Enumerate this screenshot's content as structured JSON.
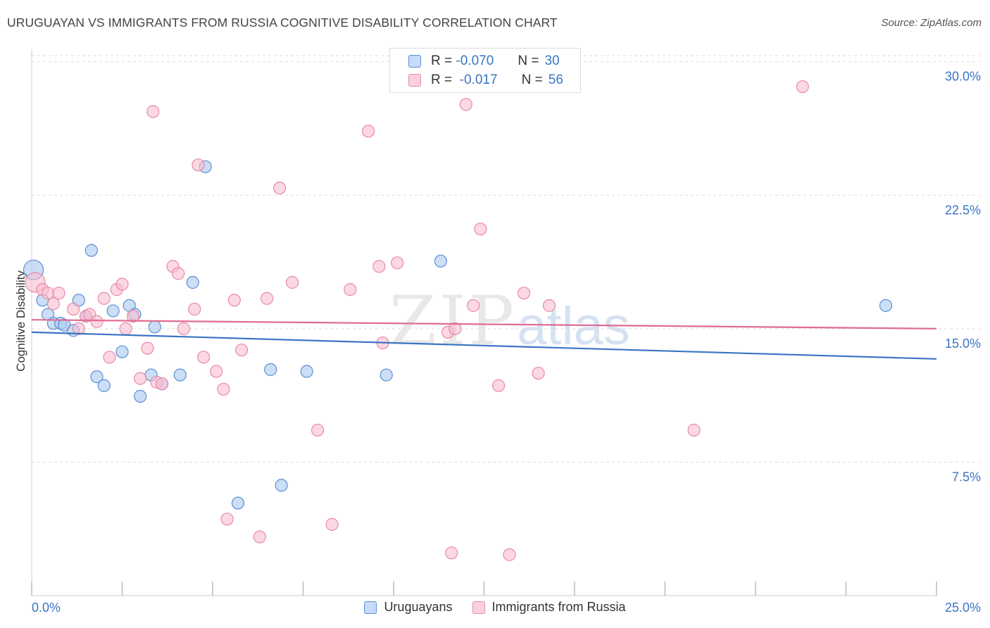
{
  "header": {
    "title": "URUGUAYAN VS IMMIGRANTS FROM RUSSIA COGNITIVE DISABILITY CORRELATION CHART",
    "source": "Source: ZipAtlas.com"
  },
  "watermark": {
    "zip": "ZIP",
    "atlas": "atlas"
  },
  "legend_top": {
    "rows": [
      {
        "r_label": "R =",
        "r_value": "-0.070",
        "n_label": "N =",
        "n_value": "30"
      },
      {
        "r_label": "R =",
        "r_value": "-0.017",
        "n_label": "N =",
        "n_value": "56"
      }
    ]
  },
  "colors": {
    "blue_fill": "#aac8ef",
    "blue_stroke": "#5b8fd6",
    "blue_line": "#3a74c4",
    "pink_fill": "#f8bed0",
    "pink_stroke": "#e88aa8",
    "pink_line": "#e06c93",
    "tick_label": "#3a74c4",
    "grid": "#dddddd"
  },
  "chart_data": {
    "type": "scatter",
    "title": "URUGUAYAN VS IMMIGRANTS FROM RUSSIA COGNITIVE DISABILITY CORRELATION CHART",
    "xlabel": "",
    "ylabel": "Cognitive Disability",
    "xlim": [
      0,
      25
    ],
    "ylim": [
      0,
      30.7
    ],
    "x_tick_labels": [
      "0.0%",
      "25.0%"
    ],
    "y_ticks": [
      7.5,
      15.0,
      22.5,
      30.0
    ],
    "y_tick_labels": [
      "7.5%",
      "15.0%",
      "22.5%",
      "30.0%"
    ],
    "grid": true,
    "legend_position": "bottom",
    "series": [
      {
        "name": "Uruguayans",
        "r": -0.07,
        "n": 30,
        "trend": {
          "x": [
            0,
            25
          ],
          "y": [
            14.8,
            13.3
          ]
        },
        "points": [
          [
            0.05,
            18.3
          ],
          [
            0.3,
            16.6
          ],
          [
            0.45,
            15.8
          ],
          [
            0.6,
            15.3
          ],
          [
            0.8,
            15.3
          ],
          [
            0.9,
            15.2
          ],
          [
            1.15,
            14.9
          ],
          [
            1.3,
            16.6
          ],
          [
            1.5,
            15.7
          ],
          [
            1.65,
            19.4
          ],
          [
            1.8,
            12.3
          ],
          [
            2.0,
            11.8
          ],
          [
            2.25,
            16.0
          ],
          [
            2.5,
            13.7
          ],
          [
            2.7,
            16.3
          ],
          [
            2.85,
            15.8
          ],
          [
            3.0,
            11.2
          ],
          [
            3.3,
            12.4
          ],
          [
            3.4,
            15.1
          ],
          [
            3.6,
            11.9
          ],
          [
            4.1,
            12.4
          ],
          [
            4.45,
            17.6
          ],
          [
            4.8,
            24.1
          ],
          [
            5.7,
            5.2
          ],
          [
            6.6,
            12.7
          ],
          [
            6.9,
            6.2
          ],
          [
            7.6,
            12.6
          ],
          [
            9.8,
            12.4
          ],
          [
            11.3,
            18.8
          ],
          [
            23.6,
            16.3
          ]
        ]
      },
      {
        "name": "Immigrants from Russia",
        "r": -0.017,
        "n": 56,
        "trend": {
          "x": [
            0,
            25
          ],
          "y": [
            15.5,
            15.0
          ]
        },
        "points": [
          [
            0.1,
            17.6
          ],
          [
            0.3,
            17.2
          ],
          [
            0.45,
            17.0
          ],
          [
            0.6,
            16.4
          ],
          [
            0.75,
            17.0
          ],
          [
            1.15,
            16.1
          ],
          [
            1.3,
            15.0
          ],
          [
            1.5,
            15.7
          ],
          [
            1.6,
            15.8
          ],
          [
            1.8,
            15.4
          ],
          [
            2.0,
            16.7
          ],
          [
            2.15,
            13.4
          ],
          [
            2.35,
            17.2
          ],
          [
            2.5,
            17.5
          ],
          [
            2.6,
            15.0
          ],
          [
            2.8,
            15.7
          ],
          [
            3.0,
            12.2
          ],
          [
            3.2,
            13.9
          ],
          [
            3.35,
            27.2
          ],
          [
            3.45,
            12.0
          ],
          [
            3.6,
            11.9
          ],
          [
            3.9,
            18.5
          ],
          [
            4.05,
            18.1
          ],
          [
            4.2,
            15.0
          ],
          [
            4.5,
            16.1
          ],
          [
            4.6,
            24.2
          ],
          [
            4.75,
            13.4
          ],
          [
            5.1,
            12.6
          ],
          [
            5.3,
            11.6
          ],
          [
            5.4,
            4.3
          ],
          [
            5.6,
            16.6
          ],
          [
            5.8,
            13.8
          ],
          [
            6.3,
            3.3
          ],
          [
            6.5,
            16.7
          ],
          [
            6.85,
            22.9
          ],
          [
            7.2,
            17.6
          ],
          [
            7.9,
            9.3
          ],
          [
            8.3,
            4.0
          ],
          [
            8.8,
            17.2
          ],
          [
            9.3,
            26.1
          ],
          [
            9.6,
            18.5
          ],
          [
            9.7,
            14.2
          ],
          [
            10.1,
            18.7
          ],
          [
            11.6,
            2.4
          ],
          [
            11.5,
            14.8
          ],
          [
            11.7,
            15.0
          ],
          [
            12.0,
            27.6
          ],
          [
            12.2,
            16.3
          ],
          [
            12.4,
            20.6
          ],
          [
            12.9,
            11.8
          ],
          [
            13.2,
            2.3
          ],
          [
            13.6,
            17.0
          ],
          [
            14.0,
            12.5
          ],
          [
            14.3,
            16.3
          ],
          [
            18.3,
            9.3
          ],
          [
            21.3,
            28.6
          ]
        ]
      }
    ]
  },
  "legend_bottom": {
    "items": [
      "Uruguayans",
      "Immigrants from Russia"
    ]
  }
}
